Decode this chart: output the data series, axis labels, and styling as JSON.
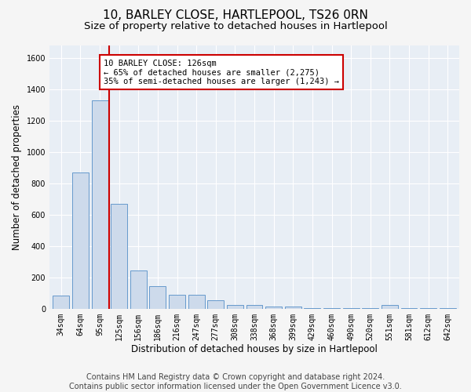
{
  "title": "10, BARLEY CLOSE, HARTLEPOOL, TS26 0RN",
  "subtitle": "Size of property relative to detached houses in Hartlepool",
  "xlabel": "Distribution of detached houses by size in Hartlepool",
  "ylabel": "Number of detached properties",
  "footer_line1": "Contains HM Land Registry data © Crown copyright and database right 2024.",
  "footer_line2": "Contains public sector information licensed under the Open Government Licence v3.0.",
  "categories": [
    "34sqm",
    "64sqm",
    "95sqm",
    "125sqm",
    "156sqm",
    "186sqm",
    "216sqm",
    "247sqm",
    "277sqm",
    "308sqm",
    "338sqm",
    "368sqm",
    "399sqm",
    "429sqm",
    "460sqm",
    "490sqm",
    "520sqm",
    "551sqm",
    "581sqm",
    "612sqm",
    "642sqm"
  ],
  "values": [
    85,
    870,
    1330,
    670,
    245,
    145,
    88,
    88,
    55,
    22,
    22,
    15,
    15,
    5,
    5,
    5,
    5,
    22,
    5,
    5,
    5
  ],
  "bar_color": "#cddaeb",
  "bar_edge_color": "#6699cc",
  "red_line_x": 2.5,
  "red_line_color": "#cc0000",
  "annotation_line1": "10 BARLEY CLOSE: 126sqm",
  "annotation_line2": "← 65% of detached houses are smaller (2,275)",
  "annotation_line3": "35% of semi-detached houses are larger (1,243) →",
  "annotation_box_color": "#ffffff",
  "annotation_box_edge_color": "#cc0000",
  "ylim": [
    0,
    1680
  ],
  "yticks": [
    0,
    200,
    400,
    600,
    800,
    1000,
    1200,
    1400,
    1600
  ],
  "background_color": "#e8eef5",
  "grid_color": "#ffffff",
  "title_fontsize": 11,
  "subtitle_fontsize": 9.5,
  "axis_label_fontsize": 8.5,
  "tick_fontsize": 7,
  "footer_fontsize": 7,
  "fig_width": 6.0,
  "fig_height": 5.0,
  "fig_dpi": 100
}
